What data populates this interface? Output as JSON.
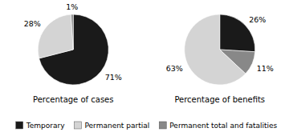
{
  "chart_data": [
    {
      "type": "pie",
      "title": "Percentage of cases",
      "categories": [
        "Temporary",
        "Permanent partial",
        "Permanent total and fatalities"
      ],
      "values": [
        71,
        28,
        1
      ],
      "value_labels": [
        "71%",
        "28%",
        "1%"
      ],
      "colors": [
        "#1a1a1a",
        "#d4d4d4",
        "#888888"
      ],
      "data_labels": true,
      "legend": "bottom"
    },
    {
      "type": "pie",
      "title": "Percentage of benefits",
      "categories": [
        "Temporary",
        "Permanent total and fatalities",
        "Permanent partial"
      ],
      "values": [
        26,
        11,
        63
      ],
      "value_labels": [
        "26%",
        "11%",
        "63%"
      ],
      "colors": [
        "#1a1a1a",
        "#888888",
        "#d4d4d4"
      ],
      "data_labels": true
    }
  ]
}
